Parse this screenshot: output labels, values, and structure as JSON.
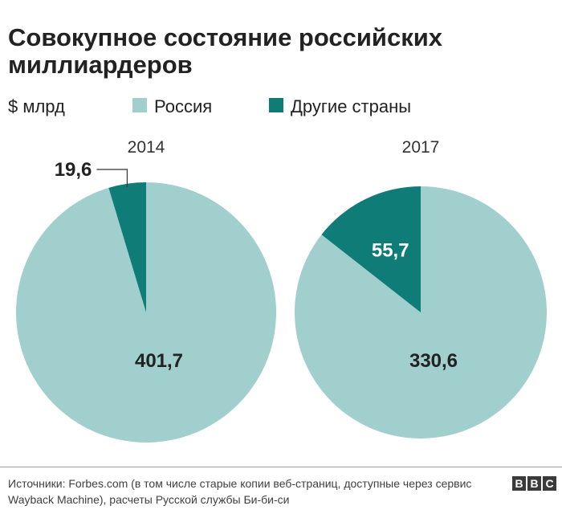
{
  "title": "Совокупное состояние российских миллиардеров",
  "legend": {
    "unit": "$ млрд",
    "items": [
      {
        "label": "Россия",
        "color": "#a0cfcd"
      },
      {
        "label": "Другие страны",
        "color": "#0f7c78"
      }
    ]
  },
  "chart_data": {
    "type": "pie",
    "unit": "$ млрд",
    "series_names": [
      "Россия",
      "Другие страны"
    ],
    "colors": {
      "Россия": "#a0cfcd",
      "Другие страны": "#0f7c78"
    },
    "pies": [
      {
        "year": "2014",
        "slices": [
          {
            "name": "Россия",
            "value": 401.7,
            "label": "401,7"
          },
          {
            "name": "Другие страны",
            "value": 19.6,
            "label": "19,6"
          }
        ]
      },
      {
        "year": "2017",
        "slices": [
          {
            "name": "Россия",
            "value": 330.6,
            "label": "330,6"
          },
          {
            "name": "Другие страны",
            "value": 55.7,
            "label": "55,7"
          }
        ]
      }
    ]
  },
  "footer": {
    "source": "Источники: Forbes.com (в том числе старые копии веб-страниц, доступные через сервис Wayback Machine), расчеты Русской службы Би-би-си",
    "logo": [
      "B",
      "B",
      "C"
    ]
  }
}
